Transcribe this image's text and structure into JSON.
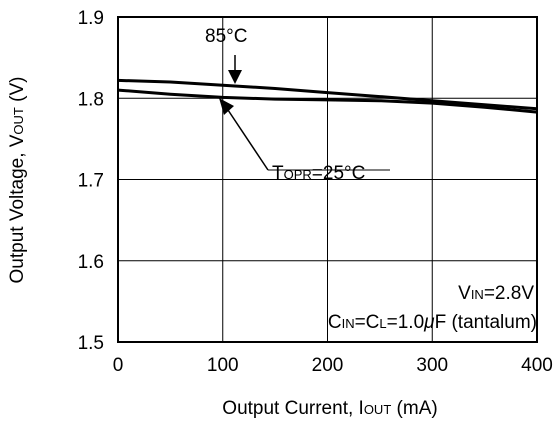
{
  "chart_data": {
    "type": "line",
    "xlabel": {
      "main": "Output Current, ",
      "sym": "I",
      "sub": "OUT",
      "unit": " (mA)"
    },
    "ylabel": {
      "main": "Output Voltage, ",
      "sym": "V",
      "sub": "OUT",
      "unit": " (V)"
    },
    "xlim": [
      0,
      400
    ],
    "ylim": [
      1.5,
      1.9
    ],
    "xticks": [
      "0",
      "100",
      "200",
      "300",
      "400"
    ],
    "yticks": [
      "1.5",
      "1.6",
      "1.7",
      "1.8",
      "1.9"
    ],
    "grid": true,
    "series": [
      {
        "x": [
          0,
          50,
          100,
          150,
          200,
          250,
          300,
          350,
          400
        ],
        "y": [
          1.822,
          1.82,
          1.816,
          1.812,
          1.807,
          1.802,
          1.797,
          1.792,
          1.787
        ]
      },
      {
        "x": [
          0,
          50,
          100,
          150,
          200,
          250,
          300,
          350,
          400
        ],
        "y": [
          1.81,
          1.805,
          1.801,
          1.799,
          1.798,
          1.797,
          1.794,
          1.789,
          1.783
        ]
      }
    ],
    "annotations": {
      "a85": "85°C",
      "topr_sym": "T",
      "topr_sub": "OPR",
      "topr_val": "=25°C",
      "vin_sym": "V",
      "vin_sub": "IN",
      "vin_val": "=2.8V",
      "cap_c1": "C",
      "cap_s1": "IN",
      "cap_mid": "=C",
      "cap_s2": "L",
      "cap_val": "=1.0",
      "cap_mu": "μ",
      "cap_end": "F (tantalum)"
    }
  }
}
